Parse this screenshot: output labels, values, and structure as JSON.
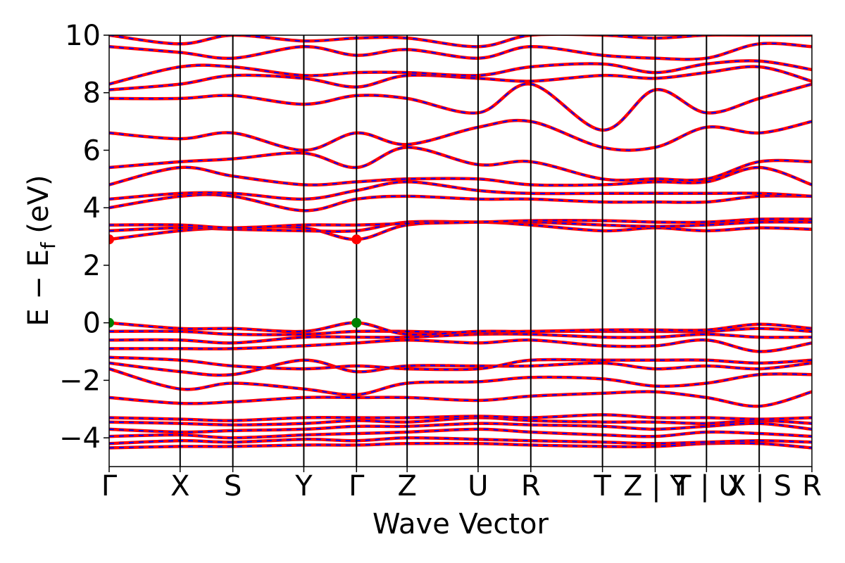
{
  "chart_data": {
    "type": "line",
    "title": "",
    "xlabel": "Wave Vector",
    "ylabel": "E − E_f (eV)",
    "ylabel_parts": {
      "main": "E − E",
      "sub": "f",
      "unit": " (eV)"
    },
    "ylim": [
      -5,
      10
    ],
    "yticks": [
      -4,
      -2,
      0,
      2,
      4,
      6,
      8,
      10
    ],
    "ytick_labels": [
      "−4",
      "−2",
      "0",
      "2",
      "4",
      "6",
      "8",
      "10"
    ],
    "kpath": [
      {
        "label": "Γ",
        "x": 0.0
      },
      {
        "label": "X",
        "x": 0.101
      },
      {
        "label": "S",
        "x": 0.176
      },
      {
        "label": "Y",
        "x": 0.277
      },
      {
        "label": "Γ",
        "x": 0.352
      },
      {
        "label": "Z",
        "x": 0.424
      },
      {
        "label": "U",
        "x": 0.525
      },
      {
        "label": "R",
        "x": 0.6
      },
      {
        "label": "T",
        "x": 0.702
      },
      {
        "label": "Z | Y",
        "x": 0.777
      },
      {
        "label": "T | U",
        "x": 0.85
      },
      {
        "label": "X | S",
        "x": 0.925
      },
      {
        "label": "R",
        "x": 1.0
      }
    ],
    "band_colors": {
      "primary": "#ff0000",
      "overlay": "#0000ff"
    },
    "markers": [
      {
        "name": "CBM",
        "x": 0.0,
        "y": 2.9,
        "color": "#ff0000"
      },
      {
        "name": "CBM",
        "x": 0.352,
        "y": 2.9,
        "color": "#ff0000"
      },
      {
        "name": "VBM",
        "x": 0.0,
        "y": 0.0,
        "color": "#008000"
      },
      {
        "name": "VBM",
        "x": 0.352,
        "y": 0.0,
        "color": "#008000"
      }
    ],
    "bands": [
      [
        -4.35,
        -4.3,
        -4.3,
        -4.25,
        -4.25,
        -4.2,
        -4.2,
        -4.25,
        -4.3,
        -4.3,
        -4.2,
        -4.2,
        -4.35
      ],
      [
        -4.2,
        -4.1,
        -4.15,
        -4.05,
        -4.1,
        -4.0,
        -4.05,
        -4.1,
        -4.15,
        -4.2,
        -4.15,
        -4.1,
        -4.15
      ],
      [
        -3.95,
        -3.9,
        -4.0,
        -3.9,
        -3.85,
        -3.8,
        -3.7,
        -3.8,
        -3.9,
        -3.95,
        -3.8,
        -3.85,
        -3.95
      ],
      [
        -3.7,
        -3.8,
        -3.75,
        -3.7,
        -3.6,
        -3.6,
        -3.5,
        -3.55,
        -3.6,
        -3.7,
        -3.6,
        -3.5,
        -3.7
      ],
      [
        -3.45,
        -3.5,
        -3.55,
        -3.5,
        -3.4,
        -3.45,
        -3.3,
        -3.4,
        -3.45,
        -3.45,
        -3.5,
        -3.4,
        -3.5
      ],
      [
        -3.3,
        -3.35,
        -3.4,
        -3.3,
        -3.3,
        -3.3,
        -3.25,
        -3.3,
        -3.2,
        -3.3,
        -3.3,
        -3.35,
        -3.3
      ],
      [
        -2.6,
        -2.8,
        -2.75,
        -2.6,
        -2.6,
        -2.6,
        -2.7,
        -2.55,
        -2.45,
        -2.4,
        -2.6,
        -2.9,
        -2.4
      ],
      [
        -1.6,
        -2.3,
        -2.1,
        -2.3,
        -2.5,
        -2.1,
        -2.05,
        -1.9,
        -1.95,
        -2.2,
        -2.1,
        -1.8,
        -1.8
      ],
      [
        -1.4,
        -1.7,
        -1.8,
        -1.3,
        -1.7,
        -1.5,
        -1.5,
        -1.5,
        -1.4,
        -1.6,
        -1.5,
        -1.6,
        -1.4
      ],
      [
        -1.2,
        -1.3,
        -1.5,
        -1.6,
        -1.5,
        -1.6,
        -1.6,
        -1.3,
        -1.3,
        -1.3,
        -1.3,
        -1.4,
        -1.3
      ],
      [
        -0.9,
        -0.9,
        -0.9,
        -0.8,
        -0.7,
        -0.6,
        -0.7,
        -0.6,
        -0.8,
        -0.8,
        -0.6,
        -1.0,
        -0.7
      ],
      [
        -0.6,
        -0.6,
        -0.7,
        -0.5,
        -0.5,
        -0.5,
        -0.4,
        -0.4,
        -0.5,
        -0.5,
        -0.4,
        -0.5,
        -0.5
      ],
      [
        -0.3,
        -0.3,
        -0.4,
        -0.4,
        -0.3,
        -0.3,
        -0.35,
        -0.3,
        -0.3,
        -0.3,
        -0.3,
        -0.2,
        -0.3
      ],
      [
        0.0,
        -0.2,
        -0.2,
        -0.3,
        0.0,
        -0.4,
        -0.3,
        -0.3,
        -0.25,
        -0.25,
        -0.25,
        -0.05,
        -0.2
      ],
      [
        2.9,
        3.2,
        3.3,
        3.3,
        2.9,
        3.4,
        3.5,
        3.4,
        3.2,
        3.3,
        3.2,
        3.3,
        3.25
      ],
      [
        3.2,
        3.3,
        3.25,
        3.2,
        3.2,
        3.5,
        3.5,
        3.5,
        3.4,
        3.35,
        3.4,
        3.5,
        3.5
      ],
      [
        3.4,
        3.4,
        3.3,
        3.4,
        3.4,
        3.45,
        3.5,
        3.55,
        3.55,
        3.5,
        3.5,
        3.6,
        3.6
      ],
      [
        4.0,
        4.4,
        4.4,
        3.9,
        4.3,
        4.4,
        4.3,
        4.3,
        4.2,
        4.2,
        4.2,
        4.4,
        4.4
      ],
      [
        4.3,
        4.5,
        4.5,
        4.3,
        4.6,
        4.9,
        4.6,
        4.5,
        4.5,
        4.5,
        4.5,
        4.5,
        4.4
      ],
      [
        4.8,
        5.4,
        5.1,
        4.8,
        4.9,
        5.0,
        5.0,
        4.8,
        4.8,
        4.9,
        4.9,
        5.4,
        4.8
      ],
      [
        5.4,
        5.6,
        5.7,
        5.9,
        5.4,
        6.1,
        5.5,
        5.6,
        5.0,
        5.0,
        5.0,
        5.6,
        5.6
      ],
      [
        6.6,
        6.4,
        6.6,
        6.0,
        6.6,
        6.2,
        6.8,
        7.0,
        6.1,
        6.1,
        6.8,
        6.6,
        7.0
      ],
      [
        7.8,
        7.8,
        7.9,
        7.6,
        7.9,
        7.8,
        7.3,
        8.3,
        6.7,
        8.1,
        7.3,
        7.8,
        8.3
      ],
      [
        8.1,
        8.3,
        8.6,
        8.5,
        8.2,
        8.6,
        8.5,
        8.4,
        8.6,
        8.5,
        8.7,
        8.9,
        8.4
      ],
      [
        8.3,
        8.9,
        8.9,
        8.6,
        8.7,
        8.7,
        8.6,
        8.9,
        9.0,
        8.7,
        9.0,
        9.1,
        8.8
      ],
      [
        9.6,
        9.4,
        9.2,
        9.6,
        9.3,
        9.5,
        9.2,
        9.6,
        9.3,
        9.2,
        9.2,
        9.7,
        9.6
      ],
      [
        10.0,
        9.7,
        10.0,
        9.8,
        9.9,
        9.9,
        9.6,
        10.0,
        10.0,
        9.9,
        10.0,
        10.0,
        10.0
      ]
    ]
  }
}
